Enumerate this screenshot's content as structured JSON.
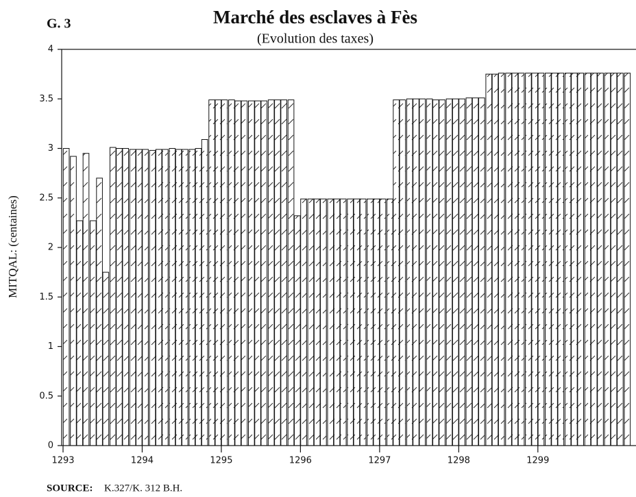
{
  "chart_data": {
    "type": "bar",
    "figure_label": "G. 3",
    "title": "Marché des esclaves à Fès",
    "subtitle": "(Evolution des taxes)",
    "y_label": "MITQAL:  (centaines)",
    "source_label": "SOURCE:",
    "source": "K.327/K. 312 B.H.",
    "color": "#ffffff",
    "x": [
      1293.04,
      1293.13,
      1293.21,
      1293.29,
      1293.38,
      1293.46,
      1293.54,
      1293.63,
      1293.71,
      1293.79,
      1293.88,
      1293.96,
      1294.04,
      1294.13,
      1294.21,
      1294.29,
      1294.38,
      1294.46,
      1294.54,
      1294.63,
      1294.71,
      1294.79,
      1294.88,
      1294.96,
      1295.04,
      1295.13,
      1295.21,
      1295.29,
      1295.38,
      1295.46,
      1295.54,
      1295.63,
      1295.71,
      1295.79,
      1295.88,
      1295.96,
      1296.04,
      1296.13,
      1296.21,
      1296.29,
      1296.38,
      1296.46,
      1296.54,
      1296.63,
      1296.71,
      1296.79,
      1296.88,
      1296.96,
      1297.04,
      1297.13,
      1297.21,
      1297.29,
      1297.38,
      1297.46,
      1297.54,
      1297.63,
      1297.71,
      1297.79,
      1297.88,
      1297.96,
      1298.04,
      1298.13,
      1298.21,
      1298.29,
      1298.38,
      1298.46,
      1298.54,
      1298.63,
      1298.71,
      1298.79,
      1298.88,
      1298.96,
      1299.04,
      1299.13,
      1299.21,
      1299.29,
      1299.38,
      1299.46,
      1299.54,
      1299.63,
      1299.71,
      1299.79,
      1299.88,
      1299.96,
      1300.04,
      1300.13
    ],
    "values": [
      3.0,
      2.92,
      2.27,
      2.95,
      2.27,
      2.7,
      1.75,
      3.01,
      3.0,
      3.0,
      2.99,
      2.99,
      2.99,
      2.98,
      2.99,
      2.99,
      3.0,
      2.99,
      2.99,
      2.99,
      3.0,
      3.09,
      3.49,
      3.49,
      3.49,
      3.49,
      3.48,
      3.48,
      3.48,
      3.48,
      3.48,
      3.49,
      3.49,
      3.49,
      3.49,
      2.32,
      2.49,
      2.49,
      2.49,
      2.49,
      2.49,
      2.49,
      2.49,
      2.49,
      2.49,
      2.49,
      2.49,
      2.49,
      2.49,
      2.49,
      3.49,
      3.49,
      3.5,
      3.5,
      3.5,
      3.5,
      3.49,
      3.49,
      3.5,
      3.5,
      3.5,
      3.51,
      3.51,
      3.51,
      3.75,
      3.75,
      3.76,
      3.76,
      3.76,
      3.76,
      3.76,
      3.76,
      3.76,
      3.76,
      3.76,
      3.76,
      3.76,
      3.76,
      3.76,
      3.76,
      3.76,
      3.76,
      3.76,
      3.76,
      3.76,
      3.76
    ],
    "xlim": [
      1293,
      1300.24
    ],
    "xticks": [
      1293,
      1294,
      1295,
      1296,
      1297,
      1298,
      1299
    ],
    "ylim": [
      0,
      4
    ],
    "yticks": [
      0,
      0.5,
      1,
      1.5,
      2,
      2.5,
      3,
      3.5,
      4
    ]
  }
}
